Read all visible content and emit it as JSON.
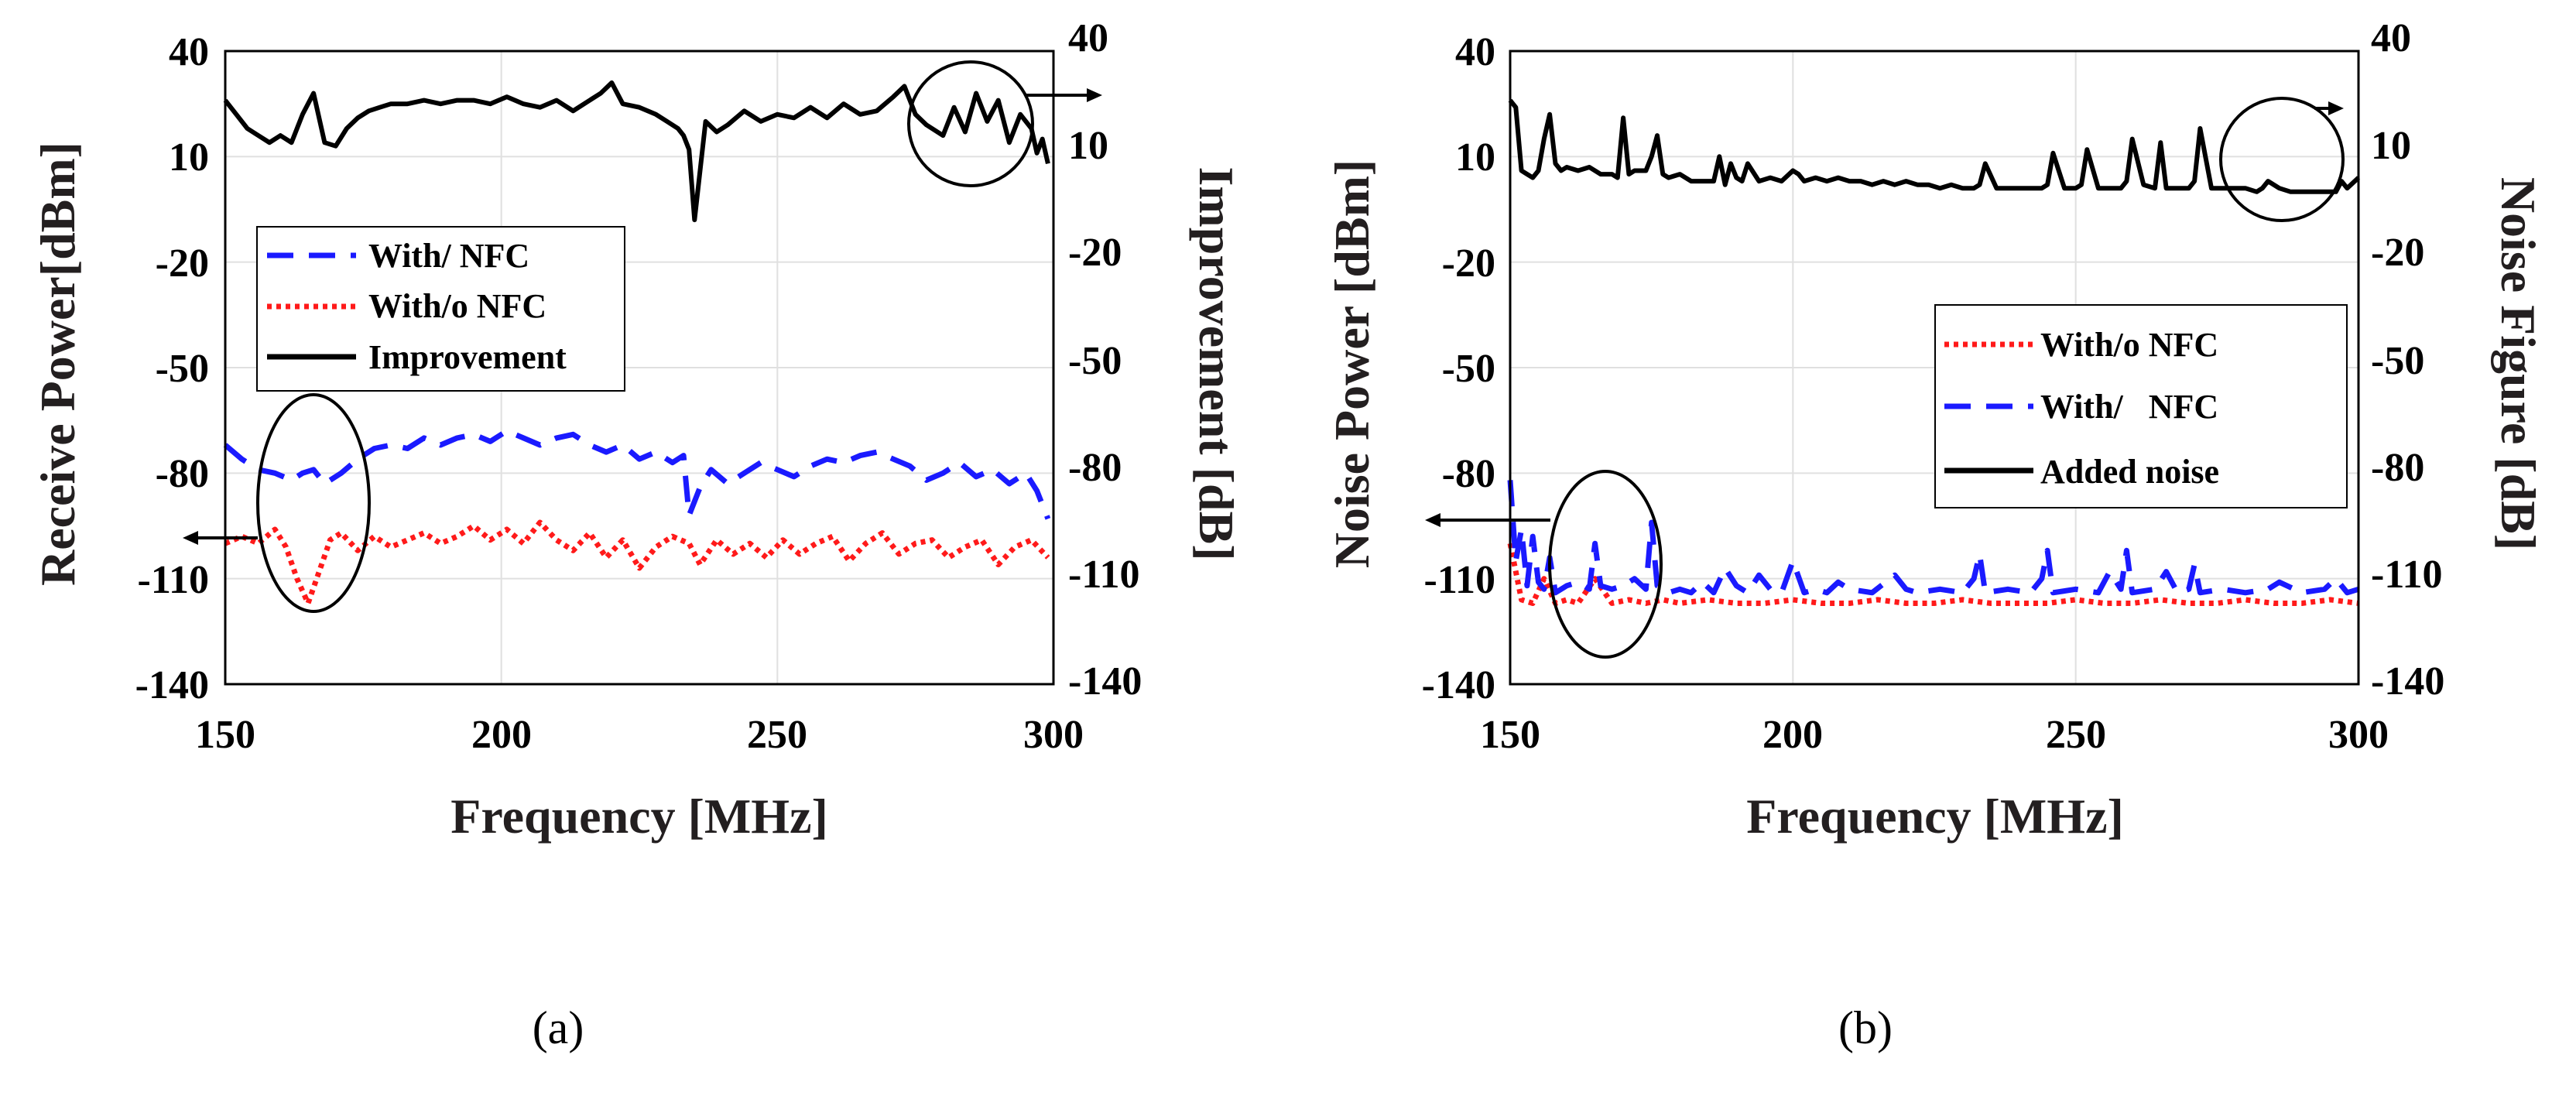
{
  "chart_data": [
    {
      "type": "line",
      "panel_label": "(a)",
      "xlabel": "Frequency [MHz]",
      "ylabel_left": "Receive Power[dBm]",
      "ylabel_right": "Improvement [dB]",
      "xlim": [
        150,
        300
      ],
      "ylim_left": [
        -140,
        40
      ],
      "ylim_right": [
        -140,
        40
      ],
      "xticks": [
        "150",
        "200",
        "250",
        "300"
      ],
      "yticks_left": [
        "40",
        "10",
        "-20",
        "-50",
        "-80",
        "-110",
        "-140"
      ],
      "yticks_right": [
        "40",
        "10",
        "-20",
        "-50",
        "-80",
        "-110",
        "-140"
      ],
      "grid": true,
      "legend_position": "middle-left",
      "colors": {
        "with_nfc": "#1a1aff",
        "without_nfc": "#ff1a1a",
        "improvement": "#000000"
      },
      "series": [
        {
          "name": "With/ NFC",
          "axis": "left",
          "style": "dashed",
          "x": [
            150,
            153,
            156,
            159,
            162,
            164,
            166,
            168,
            171,
            174,
            177,
            180,
            183,
            186,
            189,
            192,
            195,
            198,
            201,
            204,
            207,
            210,
            213,
            216,
            219,
            222,
            225,
            228,
            231,
            233,
            234,
            236,
            238,
            241,
            244,
            247,
            250,
            253,
            256,
            259,
            262,
            265,
            268,
            271,
            274,
            277,
            280,
            283,
            286,
            289,
            292,
            295,
            297,
            299
          ],
          "values": [
            -72,
            -76,
            -79,
            -80,
            -82,
            -80,
            -79,
            -83,
            -80,
            -76,
            -73,
            -72,
            -73,
            -70,
            -72,
            -70,
            -69,
            -71,
            -68,
            -70,
            -72,
            -70,
            -69,
            -72,
            -74,
            -72,
            -76,
            -74,
            -77,
            -75,
            -92,
            -84,
            -79,
            -83,
            -80,
            -77,
            -79,
            -81,
            -78,
            -76,
            -77,
            -75,
            -74,
            -76,
            -78,
            -82,
            -80,
            -77,
            -81,
            -79,
            -83,
            -80,
            -85,
            -93
          ]
        },
        {
          "name": "With/o NFC",
          "axis": "left",
          "style": "dotted",
          "x": [
            150,
            153,
            156,
            159,
            161,
            163,
            165,
            167,
            169,
            171,
            174,
            177,
            180,
            183,
            186,
            189,
            192,
            195,
            198,
            201,
            204,
            207,
            210,
            213,
            216,
            219,
            222,
            225,
            228,
            231,
            234,
            236,
            239,
            242,
            245,
            248,
            251,
            254,
            257,
            260,
            263,
            266,
            269,
            272,
            275,
            278,
            281,
            284,
            287,
            290,
            293,
            296,
            299
          ],
          "values": [
            -100,
            -98,
            -100,
            -96,
            -101,
            -110,
            -117,
            -108,
            -99,
            -97,
            -102,
            -98,
            -101,
            -99,
            -97,
            -100,
            -98,
            -95,
            -99,
            -96,
            -100,
            -94,
            -99,
            -102,
            -97,
            -104,
            -99,
            -107,
            -101,
            -98,
            -100,
            -106,
            -99,
            -103,
            -100,
            -104,
            -99,
            -103,
            -100,
            -98,
            -105,
            -100,
            -97,
            -103,
            -100,
            -99,
            -104,
            -101,
            -99,
            -106,
            -101,
            -99,
            -104
          ]
        },
        {
          "name": "Improvement",
          "axis": "right",
          "style": "solid",
          "x": [
            150,
            152,
            154,
            156,
            158,
            160,
            162,
            164,
            166,
            168,
            170,
            172,
            174,
            176,
            178,
            180,
            183,
            186,
            189,
            192,
            195,
            198,
            201,
            204,
            207,
            210,
            213,
            216,
            218,
            220,
            222,
            225,
            228,
            230,
            232,
            233,
            234,
            235,
            237,
            239,
            241,
            244,
            247,
            250,
            253,
            256,
            259,
            262,
            265,
            268,
            271,
            273,
            275,
            277,
            280,
            282,
            284,
            286,
            288,
            290,
            292,
            294,
            296,
            297,
            298,
            299
          ],
          "values": [
            26,
            22,
            18,
            16,
            14,
            16,
            14,
            22,
            28,
            14,
            13,
            18,
            21,
            23,
            24,
            25,
            25,
            26,
            25,
            26,
            26,
            25,
            27,
            25,
            24,
            26,
            23,
            26,
            28,
            31,
            25,
            24,
            22,
            20,
            18,
            16,
            12,
            -8,
            20,
            17,
            19,
            23,
            20,
            22,
            21,
            24,
            21,
            25,
            22,
            23,
            27,
            30,
            22,
            19,
            16,
            24,
            17,
            28,
            20,
            26,
            14,
            22,
            18,
            11,
            15,
            8
          ]
        }
      ]
    },
    {
      "type": "line",
      "panel_label": "(b)",
      "xlabel": "Frequency [MHz]",
      "ylabel_left": "Noise Power [dBm]",
      "ylabel_right": "Noise Figure [dB]",
      "xlim": [
        150,
        300
      ],
      "ylim_left": [
        -140,
        40
      ],
      "ylim_right": [
        -140,
        40
      ],
      "xticks": [
        "150",
        "200",
        "250",
        "300"
      ],
      "yticks_left": [
        "40",
        "10",
        "-20",
        "-50",
        "-80",
        "-110",
        "-140"
      ],
      "yticks_right": [
        "40",
        "10",
        "-20",
        "-50",
        "-80",
        "-110",
        "-140"
      ],
      "grid": true,
      "legend_position": "middle-right",
      "colors": {
        "with_nfc": "#1a1aff",
        "without_nfc": "#ff1a1a",
        "added_noise": "#000000"
      },
      "series": [
        {
          "name": "With/o NFC",
          "axis": "left",
          "style": "dotted",
          "x": [
            150,
            152,
            154,
            156,
            158,
            160,
            162,
            165,
            168,
            171,
            174,
            177,
            180,
            185,
            190,
            195,
            200,
            205,
            210,
            215,
            220,
            225,
            230,
            235,
            240,
            245,
            250,
            255,
            260,
            265,
            270,
            275,
            280,
            285,
            290,
            295,
            300
          ],
          "values": [
            -100,
            -116,
            -117,
            -110,
            -117,
            -116,
            -117,
            -110,
            -117,
            -116,
            -117,
            -116,
            -117,
            -116,
            -117,
            -117,
            -116,
            -117,
            -117,
            -116,
            -117,
            -117,
            -116,
            -117,
            -117,
            -117,
            -116,
            -117,
            -117,
            -116,
            -117,
            -117,
            -116,
            -117,
            -117,
            -116,
            -117
          ]
        },
        {
          "name": "With/   NFC",
          "axis": "left",
          "style": "dashed",
          "x": [
            150,
            151,
            152,
            153,
            154,
            155,
            156,
            157,
            158,
            160,
            162,
            164,
            165,
            166,
            168,
            170,
            172,
            174,
            175,
            176,
            178,
            180,
            182,
            184,
            186,
            188,
            190,
            192,
            194,
            196,
            198,
            200,
            202,
            204,
            206,
            208,
            210,
            214,
            218,
            220,
            222,
            226,
            230,
            232,
            233,
            234,
            238,
            242,
            244,
            245,
            246,
            250,
            254,
            256,
            258,
            259,
            260,
            264,
            266,
            268,
            270,
            271,
            272,
            276,
            280,
            284,
            286,
            290,
            294,
            296,
            298,
            300
          ],
          "values": [
            -82,
            -105,
            -96,
            -112,
            -98,
            -111,
            -113,
            -104,
            -114,
            -112,
            -111,
            -113,
            -100,
            -112,
            -113,
            -112,
            -110,
            -113,
            -94,
            -112,
            -114,
            -113,
            -114,
            -111,
            -114,
            -107,
            -112,
            -114,
            -109,
            -113,
            -114,
            -105,
            -114,
            -113,
            -114,
            -111,
            -113,
            -114,
            -109,
            -113,
            -114,
            -113,
            -114,
            -110,
            -103,
            -114,
            -113,
            -114,
            -110,
            -102,
            -114,
            -113,
            -114,
            -108,
            -113,
            -102,
            -114,
            -113,
            -108,
            -114,
            -113,
            -106,
            -114,
            -113,
            -114,
            -113,
            -111,
            -114,
            -113,
            -110,
            -114,
            -113
          ]
        },
        {
          "name": "Added noise",
          "axis": "right",
          "style": "solid",
          "x": [
            150,
            151,
            152,
            153,
            154,
            155,
            156,
            157,
            158,
            159,
            160,
            162,
            164,
            166,
            168,
            169,
            170,
            171,
            172,
            174,
            175,
            176,
            177,
            178,
            180,
            182,
            184,
            186,
            187,
            188,
            189,
            190,
            191,
            192,
            194,
            196,
            198,
            200,
            201,
            202,
            204,
            206,
            208,
            210,
            212,
            214,
            216,
            218,
            220,
            222,
            224,
            226,
            228,
            230,
            232,
            233,
            234,
            236,
            238,
            240,
            242,
            244,
            245,
            246,
            248,
            250,
            251,
            252,
            254,
            256,
            258,
            259,
            260,
            262,
            264,
            265,
            266,
            268,
            270,
            271,
            272,
            274,
            276,
            278,
            280,
            282,
            283,
            284,
            286,
            288,
            290,
            292,
            294,
            296,
            297,
            298,
            300
          ],
          "values": [
            26,
            24,
            6,
            5,
            4,
            6,
            15,
            22,
            8,
            6,
            7,
            6,
            7,
            5,
            5,
            4,
            21,
            5,
            6,
            6,
            10,
            16,
            5,
            4,
            5,
            3,
            3,
            3,
            10,
            2,
            8,
            4,
            3,
            8,
            3,
            4,
            3,
            6,
            5,
            3,
            4,
            3,
            4,
            3,
            3,
            2,
            3,
            2,
            3,
            2,
            2,
            1,
            2,
            1,
            1,
            2,
            8,
            1,
            1,
            1,
            1,
            1,
            2,
            11,
            1,
            1,
            2,
            12,
            1,
            1,
            1,
            3,
            15,
            2,
            1,
            14,
            1,
            1,
            1,
            3,
            18,
            1,
            1,
            1,
            1,
            0,
            1,
            3,
            1,
            0,
            0,
            0,
            0,
            0,
            3,
            1,
            4
          ]
        }
      ]
    }
  ],
  "panels": [
    {
      "legend": [
        "With/ NFC",
        "With/o NFC",
        "Improvement"
      ]
    },
    {
      "legend": [
        "With/o NFC",
        "With/   NFC",
        "Added noise"
      ]
    }
  ]
}
